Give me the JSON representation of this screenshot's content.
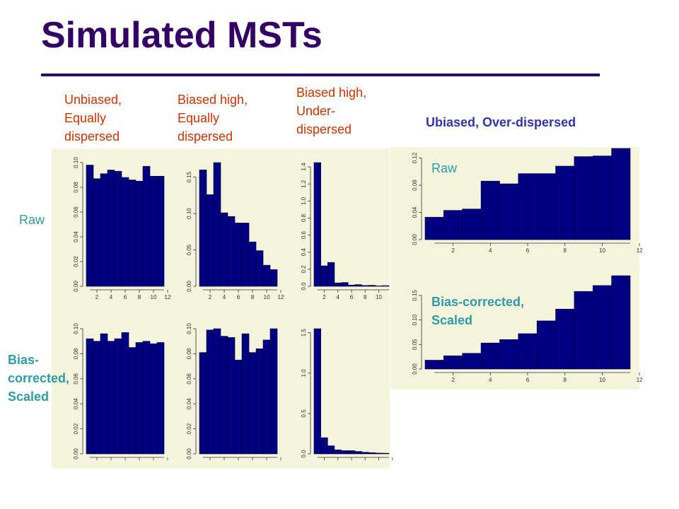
{
  "slide": {
    "title": "Simulated MSTs",
    "col_labels": [
      "Unbiased, Equally dispersed",
      "Biased high, Equally dispersed",
      "Biased high, Under-dispersed"
    ],
    "right_label": "Ubiased, Over-dispersed",
    "row_raw": "Raw",
    "row_bias_lines": [
      "Bias-",
      "corrected,",
      "Scaled"
    ],
    "right_raw": "Raw",
    "right_bias": "Bias-corrected, Scaled"
  },
  "colors": {
    "bar": "#000080",
    "panel": "#f4f3dc",
    "title": "#330066",
    "label_red": "#cc3300",
    "label_teal": "#2f9aa8"
  },
  "chart_data": [
    {
      "type": "bar",
      "x": [
        1,
        2,
        3,
        4,
        5,
        6,
        7,
        8,
        9,
        10,
        11
      ],
      "ylim": [
        0,
        0.1
      ],
      "yticks": [
        0.0,
        0.02,
        0.04,
        0.06,
        0.08,
        0.1
      ],
      "xticks": [
        2,
        4,
        6,
        8,
        10,
        12
      ],
      "values": [
        0.098,
        0.087,
        0.091,
        0.094,
        0.093,
        0.088,
        0.086,
        0.085,
        0.097,
        0.089,
        0.089
      ]
    },
    {
      "type": "bar",
      "x": [
        1,
        2,
        3,
        4,
        5,
        6,
        7,
        8,
        9,
        10,
        11
      ],
      "ylim": [
        0,
        0.17
      ],
      "yticks": [
        0.0,
        0.05,
        0.1,
        0.15
      ],
      "xticks": [
        2,
        4,
        6,
        8,
        10,
        12
      ],
      "values": [
        0.16,
        0.126,
        0.175,
        0.101,
        0.096,
        0.087,
        0.087,
        0.061,
        0.049,
        0.029,
        0.023
      ]
    },
    {
      "type": "bar",
      "x": [
        1,
        2,
        3,
        4,
        5,
        6,
        7,
        8,
        9,
        10,
        11
      ],
      "ylim": [
        0,
        1.45
      ],
      "yticks": [
        0.0,
        0.2,
        0.4,
        0.6,
        0.8,
        1.0,
        1.2,
        1.4
      ],
      "xticks": [
        2,
        4,
        6,
        8,
        10
      ],
      "values": [
        1.45,
        0.24,
        0.28,
        0.04,
        0.045,
        0.015,
        0.02,
        0.01,
        0.012,
        0.005,
        0.008
      ]
    },
    {
      "type": "bar",
      "x": [
        1,
        2,
        3,
        4,
        5,
        6,
        7,
        8,
        9,
        10,
        11
      ],
      "ylim": [
        0,
        0.1
      ],
      "yticks": [
        0.0,
        0.02,
        0.04,
        0.06,
        0.08,
        0.1
      ],
      "xticks": [],
      "values": [
        0.092,
        0.09,
        0.096,
        0.09,
        0.092,
        0.097,
        0.085,
        0.089,
        0.09,
        0.088,
        0.089
      ]
    },
    {
      "type": "bar",
      "x": [
        1,
        2,
        3,
        4,
        5,
        6,
        7,
        8,
        9,
        10,
        11
      ],
      "ylim": [
        0,
        0.1
      ],
      "yticks": [
        0.0,
        0.02,
        0.04,
        0.06,
        0.08,
        0.1
      ],
      "xticks": [],
      "values": [
        0.081,
        0.099,
        0.101,
        0.094,
        0.093,
        0.075,
        0.096,
        0.081,
        0.084,
        0.091,
        0.1
      ]
    },
    {
      "type": "bar",
      "x": [
        1,
        2,
        3,
        4,
        5,
        6,
        7,
        8,
        9,
        10,
        11
      ],
      "ylim": [
        0,
        1.55
      ],
      "yticks": [
        0.0,
        0.5,
        1.0,
        1.5
      ],
      "xticks": [],
      "values": [
        1.55,
        0.2,
        0.1,
        0.05,
        0.04,
        0.04,
        0.03,
        0.02,
        0.015,
        0.01,
        0.008
      ]
    },
    {
      "type": "bar",
      "x": [
        1,
        2,
        3,
        4,
        5,
        6,
        7,
        8,
        9,
        10,
        11
      ],
      "ylim": [
        0,
        0.135
      ],
      "yticks": [
        0.0,
        0.04,
        0.08,
        0.12
      ],
      "xticks": [
        2,
        4,
        6,
        8,
        10,
        12
      ],
      "values": [
        0.033,
        0.043,
        0.045,
        0.086,
        0.082,
        0.097,
        0.097,
        0.108,
        0.122,
        0.123,
        0.134
      ]
    },
    {
      "type": "bar",
      "x": [
        1,
        2,
        3,
        4,
        5,
        6,
        7,
        8,
        9,
        10,
        11
      ],
      "ylim": [
        0,
        0.19
      ],
      "yticks": [
        0.0,
        0.05,
        0.1,
        0.15
      ],
      "xticks": [
        2,
        4,
        6,
        8,
        10,
        12
      ],
      "values": [
        0.018,
        0.027,
        0.032,
        0.053,
        0.06,
        0.072,
        0.098,
        0.122,
        0.158,
        0.17,
        0.194
      ]
    }
  ]
}
